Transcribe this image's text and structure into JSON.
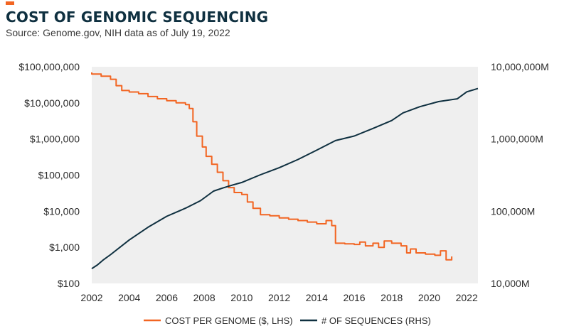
{
  "header": {
    "title": "COST OF GENOMIC SEQUENCING",
    "subtitle": "Source: Genome.gov, NIH data as of July 19, 2022"
  },
  "colors": {
    "accent": "#f26522",
    "cost_series": "#f26522",
    "sequences_series": "#0f3040",
    "plot_background": "#efefef",
    "title": "#0f3040"
  },
  "chart_data": {
    "type": "line",
    "grid": false,
    "legend_position": "bottom",
    "x_ticks": [
      "2002",
      "2004",
      "2006",
      "2008",
      "2010",
      "2012",
      "2014",
      "2016",
      "2018",
      "2020",
      "2022"
    ],
    "xlim": [
      2002,
      2022.6
    ],
    "left_axis": {
      "scale": "log",
      "ylim": [
        100,
        100000000
      ],
      "tick_values": [
        100,
        1000,
        10000,
        100000,
        1000000,
        10000000,
        100000000
      ],
      "tick_labels": [
        "$100",
        "$1,000",
        "$10,000",
        "$100,000",
        "$1,000,000",
        "$10,000,000",
        "$100,000,000"
      ]
    },
    "right_axis": {
      "scale": "log",
      "ylim": [
        10000,
        10000000
      ],
      "tick_values": [
        10000,
        100000,
        1000000,
        10000000
      ],
      "tick_labels": [
        "10,000M",
        "100,000M",
        "1,000,000M",
        "10,000,000M"
      ]
    },
    "series": [
      {
        "name": "COST PER GENOME ($, LHS)",
        "axis": "left",
        "color": "#f26522",
        "step": true,
        "points": [
          [
            2001.75,
            70000000
          ],
          [
            2002.0,
            63000000
          ],
          [
            2002.5,
            55000000
          ],
          [
            2003.0,
            45000000
          ],
          [
            2003.3,
            30000000
          ],
          [
            2003.6,
            22000000
          ],
          [
            2004.0,
            20000000
          ],
          [
            2004.5,
            18000000
          ],
          [
            2005.0,
            15000000
          ],
          [
            2005.5,
            13000000
          ],
          [
            2006.0,
            11500000
          ],
          [
            2006.5,
            10000000
          ],
          [
            2007.0,
            9000000
          ],
          [
            2007.2,
            7000000
          ],
          [
            2007.4,
            3000000
          ],
          [
            2007.6,
            1200000
          ],
          [
            2007.9,
            600000
          ],
          [
            2008.1,
            330000
          ],
          [
            2008.4,
            200000
          ],
          [
            2008.7,
            120000
          ],
          [
            2009.0,
            70000
          ],
          [
            2009.3,
            45000
          ],
          [
            2009.6,
            33000
          ],
          [
            2010.0,
            29000
          ],
          [
            2010.3,
            18000
          ],
          [
            2010.6,
            12000
          ],
          [
            2011.0,
            8000
          ],
          [
            2011.5,
            7500
          ],
          [
            2012.0,
            6500
          ],
          [
            2012.5,
            6000
          ],
          [
            2013.0,
            5500
          ],
          [
            2013.5,
            5000
          ],
          [
            2014.0,
            4500
          ],
          [
            2014.5,
            5500
          ],
          [
            2014.8,
            4000
          ],
          [
            2015.0,
            1300
          ],
          [
            2015.5,
            1250
          ],
          [
            2016.0,
            1200
          ],
          [
            2016.3,
            1400
          ],
          [
            2016.6,
            1100
          ],
          [
            2017.0,
            1300
          ],
          [
            2017.3,
            1000
          ],
          [
            2017.6,
            1500
          ],
          [
            2018.0,
            1300
          ],
          [
            2018.5,
            1100
          ],
          [
            2018.8,
            700
          ],
          [
            2019.0,
            900
          ],
          [
            2019.3,
            700
          ],
          [
            2019.8,
            650
          ],
          [
            2020.3,
            600
          ],
          [
            2020.6,
            800
          ],
          [
            2020.9,
            450
          ],
          [
            2021.2,
            560
          ]
        ]
      },
      {
        "name": "# OF SEQUENCES (RHS)",
        "axis": "right",
        "color": "#0f3040",
        "step": false,
        "points": [
          [
            2002.0,
            16000
          ],
          [
            2002.3,
            18000
          ],
          [
            2002.6,
            21000
          ],
          [
            2003.0,
            25000
          ],
          [
            2004.0,
            40000
          ],
          [
            2005.0,
            60000
          ],
          [
            2006.0,
            85000
          ],
          [
            2007.0,
            110000
          ],
          [
            2007.8,
            140000
          ],
          [
            2008.5,
            190000
          ],
          [
            2009.0,
            210000
          ],
          [
            2009.5,
            230000
          ],
          [
            2010.0,
            250000
          ],
          [
            2011.0,
            320000
          ],
          [
            2012.0,
            400000
          ],
          [
            2013.0,
            520000
          ],
          [
            2014.0,
            700000
          ],
          [
            2015.0,
            950000
          ],
          [
            2016.0,
            1100000
          ],
          [
            2017.0,
            1400000
          ],
          [
            2018.0,
            1800000
          ],
          [
            2018.6,
            2300000
          ],
          [
            2019.5,
            2800000
          ],
          [
            2020.5,
            3300000
          ],
          [
            2021.5,
            3600000
          ],
          [
            2022.0,
            4500000
          ],
          [
            2022.6,
            5000000
          ]
        ]
      }
    ]
  }
}
